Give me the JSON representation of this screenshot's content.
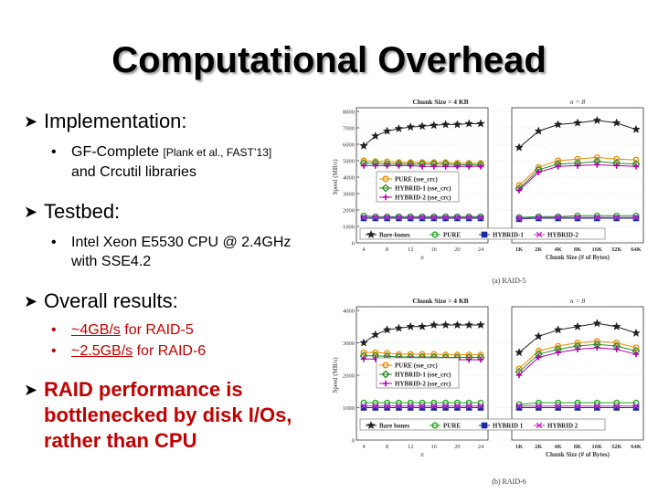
{
  "slide": {
    "title": "Computational Overhead",
    "bullets": {
      "implementation": "Implementation:",
      "gf_main": "GF-Complete",
      "gf_cite": "[Plank et al., FAST’13]",
      "gf_tail": "and Crcutil libraries",
      "testbed": "Testbed:",
      "cpu_1": "Intel Xeon E5530 CPU @ 2.4GHz",
      "cpu_2": "with SSE4.2",
      "overall": "Overall results:",
      "raid5_val": "~4GB/s",
      "raid5_rest": " for RAID-5",
      "raid6_val": "~2.5GB/s",
      "raid6_rest": " for RAID-6",
      "concl_1": "RAID performance is",
      "concl_2": "bottlenecked by disk I/Os,",
      "concl_3": "rather than CPU"
    }
  },
  "chart_data": [
    {
      "type": "line",
      "caption": "(a) RAID-5",
      "left_title": "Chunk Size = 4 KB",
      "right_title": "n = 8",
      "ylabel": "Speed (MB/s)",
      "left_xlabel": "n",
      "right_xlabel": "Chunk Size (# of Bytes)",
      "ylim": [
        0,
        8000
      ],
      "yticks": [
        0,
        1000,
        2000,
        3000,
        4000,
        5000,
        6000,
        7000,
        8000
      ],
      "yticklabels": [
        "0",
        "1000",
        "2000",
        "3000",
        "4000",
        "5000",
        "6000",
        "7000",
        "8000"
      ],
      "left_x": [
        4,
        6,
        8,
        10,
        12,
        14,
        16,
        18,
        20,
        22,
        24
      ],
      "left_xticklabels": [
        "4",
        "8",
        "12",
        "16",
        "20",
        "24"
      ],
      "right_x": [
        "1K",
        "2K",
        "4K",
        "8K",
        "16K",
        "32K",
        "64K"
      ],
      "legend_inner": [
        "PURE (sse_crc)",
        "HYBRID-1 (sse_crc)",
        "HYBRID-2 (sse_crc)"
      ],
      "legend_bottom": [
        "Bare-bones",
        "PURE",
        "HYBRID-1",
        "HYBRID-2"
      ],
      "series": [
        {
          "name": "Bare-bones",
          "color": "#202020",
          "marker": "star",
          "left": [
            5900,
            6500,
            6800,
            6950,
            7050,
            7100,
            7150,
            7200,
            7200,
            7250,
            7250
          ],
          "right": [
            5800,
            6800,
            7200,
            7300,
            7450,
            7300,
            6900
          ]
        },
        {
          "name": "PURE (sse_crc)",
          "color": "#e88a00",
          "marker": "circle",
          "left": [
            5000,
            4950,
            4950,
            4900,
            4900,
            4900,
            4900,
            4900,
            4850,
            4850,
            4850
          ],
          "right": [
            3500,
            4600,
            5000,
            5100,
            5200,
            5100,
            5050
          ]
        },
        {
          "name": "HYBRID-1 (sse_crc)",
          "color": "#2a8a2a",
          "marker": "diamond",
          "left": [
            4850,
            4850,
            4800,
            4800,
            4800,
            4800,
            4800,
            4800,
            4750,
            4750,
            4750
          ],
          "right": [
            3300,
            4450,
            4800,
            4850,
            4950,
            4850,
            4800
          ]
        },
        {
          "name": "HYBRID-2 (sse_crc)",
          "color": "#b000b0",
          "marker": "plus",
          "left": [
            4700,
            4700,
            4700,
            4700,
            4700,
            4650,
            4650,
            4650,
            4650,
            4650,
            4650
          ],
          "right": [
            3200,
            4300,
            4650,
            4700,
            4750,
            4700,
            4650
          ]
        },
        {
          "name": "PURE",
          "color": "#1aa81a",
          "marker": "circle",
          "left": [
            1650,
            1600,
            1600,
            1600,
            1600,
            1600,
            1600,
            1600,
            1600,
            1600,
            1600
          ],
          "right": [
            1550,
            1600,
            1600,
            1650,
            1650,
            1650,
            1650
          ]
        },
        {
          "name": "HYBRID-1",
          "color": "#1a2aa0",
          "marker": "square",
          "left": [
            1500,
            1500,
            1500,
            1500,
            1500,
            1500,
            1500,
            1500,
            1500,
            1500,
            1500
          ],
          "right": [
            1450,
            1500,
            1500,
            1500,
            1500,
            1500,
            1500
          ]
        },
        {
          "name": "HYBRID-2",
          "color": "#c030c0",
          "marker": "x",
          "left": [
            1550,
            1550,
            1550,
            1550,
            1550,
            1550,
            1550,
            1550,
            1550,
            1550,
            1550
          ],
          "right": [
            1500,
            1550,
            1550,
            1550,
            1550,
            1550,
            1550
          ]
        }
      ]
    },
    {
      "type": "line",
      "caption": "(b) RAID-6",
      "left_title": "Chunk Size = 4 KB",
      "right_title": "n = 8",
      "ylabel": "Speed (MB/s)",
      "left_xlabel": "n",
      "right_xlabel": "Chunk Size (# of Bytes)",
      "ylim": [
        0,
        4000
      ],
      "yticks": [
        0,
        1000,
        2000,
        3000,
        4000
      ],
      "yticklabels": [
        "0",
        "1000",
        "2000",
        "3000",
        "4000"
      ],
      "left_x": [
        4,
        6,
        8,
        10,
        12,
        14,
        16,
        18,
        20,
        22,
        24
      ],
      "left_xticklabels": [
        "4",
        "8",
        "12",
        "16",
        "20",
        "24"
      ],
      "right_x": [
        "1K",
        "2K",
        "4K",
        "8K",
        "16K",
        "32K",
        "64K"
      ],
      "legend_inner": [
        "PURE (sse_crc)",
        "HYBRID-1 (sse_crc)",
        "HYBRID-2 (sse_crc)"
      ],
      "legend_bottom": [
        "Bare bones",
        "PURE",
        "HYBRID 1",
        "HYBRID 2"
      ],
      "series": [
        {
          "name": "Bare bones",
          "color": "#202020",
          "marker": "star",
          "left": [
            3000,
            3250,
            3400,
            3450,
            3500,
            3500,
            3550,
            3550,
            3550,
            3550,
            3550
          ],
          "right": [
            2700,
            3200,
            3400,
            3500,
            3600,
            3500,
            3300
          ]
        },
        {
          "name": "PURE (sse_crc)",
          "color": "#e88a00",
          "marker": "circle",
          "left": [
            2700,
            2700,
            2680,
            2650,
            2650,
            2650,
            2650,
            2630,
            2630,
            2630,
            2630
          ],
          "right": [
            2200,
            2750,
            2900,
            3000,
            3050,
            3000,
            2850
          ]
        },
        {
          "name": "HYBRID-1 (sse_crc)",
          "color": "#2a8a2a",
          "marker": "diamond",
          "left": [
            2600,
            2600,
            2580,
            2570,
            2560,
            2560,
            2560,
            2550,
            2550,
            2550,
            2550
          ],
          "right": [
            2100,
            2650,
            2800,
            2900,
            2950,
            2900,
            2750
          ]
        },
        {
          "name": "HYBRID-2 (sse_crc)",
          "color": "#b000b0",
          "marker": "plus",
          "left": [
            2500,
            2500,
            2500,
            2500,
            2500,
            2480,
            2480,
            2480,
            2480,
            2480,
            2480
          ],
          "right": [
            2000,
            2550,
            2700,
            2800,
            2850,
            2800,
            2650
          ]
        },
        {
          "name": "PURE",
          "color": "#1aa81a",
          "marker": "circle",
          "left": [
            1150,
            1150,
            1150,
            1150,
            1150,
            1150,
            1150,
            1150,
            1150,
            1150,
            1150
          ],
          "right": [
            1100,
            1150,
            1150,
            1150,
            1150,
            1150,
            1150
          ]
        },
        {
          "name": "HYBRID 1",
          "color": "#1a2aa0",
          "marker": "square",
          "left": [
            1000,
            1000,
            1000,
            1000,
            1000,
            1000,
            1000,
            1000,
            1000,
            1000,
            1000
          ],
          "right": [
            1000,
            1000,
            1000,
            1000,
            1000,
            1000,
            1000
          ]
        },
        {
          "name": "HYBRID 2",
          "color": "#c030c0",
          "marker": "x",
          "left": [
            1050,
            1050,
            1050,
            1050,
            1050,
            1050,
            1050,
            1050,
            1050,
            1050,
            1050
          ],
          "right": [
            1050,
            1050,
            1050,
            1050,
            1050,
            1050,
            1050
          ]
        }
      ]
    }
  ]
}
